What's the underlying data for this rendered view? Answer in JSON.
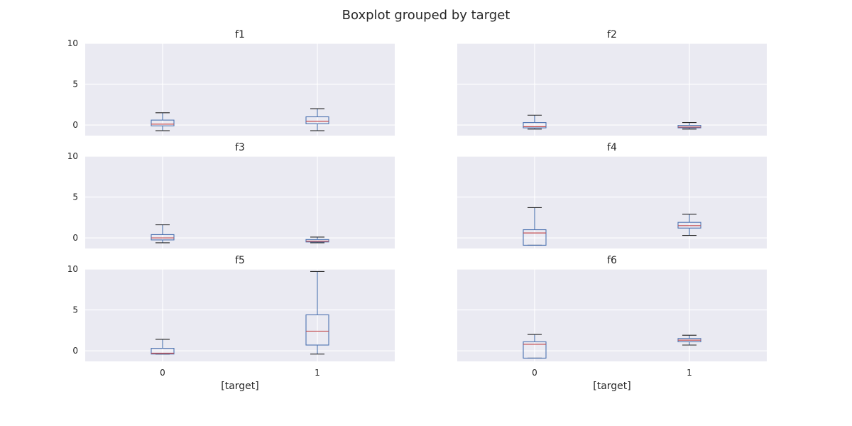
{
  "figure": {
    "suptitle": "Boxplot grouped by target",
    "xlabel": "[target]"
  },
  "colors": {
    "background": "#eaeaf2",
    "grid": "#ffffff",
    "box": "#4c72b0",
    "median": "#c44e52",
    "whisker_cap": "#262626"
  },
  "chart_data": [
    {
      "type": "box",
      "title": "f1",
      "categories": [
        "0",
        "1"
      ],
      "ylim": [
        -1.3,
        10
      ],
      "yticks": [
        0,
        5,
        10
      ],
      "grid": true,
      "boxes": [
        {
          "category": "0",
          "whislo": -0.7,
          "q1": -0.1,
          "med": 0.1,
          "q3": 0.6,
          "whishi": 1.5
        },
        {
          "category": "1",
          "whislo": -0.7,
          "q1": 0.15,
          "med": 0.45,
          "q3": 1.0,
          "whishi": 2.0
        }
      ]
    },
    {
      "type": "box",
      "title": "f2",
      "categories": [
        "0",
        "1"
      ],
      "ylim": [
        -1.3,
        10
      ],
      "yticks": [
        0,
        5,
        10
      ],
      "grid": true,
      "boxes": [
        {
          "category": "0",
          "whislo": -0.5,
          "q1": -0.35,
          "med": -0.2,
          "q3": 0.3,
          "whishi": 1.2
        },
        {
          "category": "1",
          "whislo": -0.5,
          "q1": -0.35,
          "med": -0.25,
          "q3": -0.05,
          "whishi": 0.3
        }
      ]
    },
    {
      "type": "box",
      "title": "f3",
      "categories": [
        "0",
        "1"
      ],
      "ylim": [
        -1.3,
        10
      ],
      "yticks": [
        0,
        5,
        10
      ],
      "grid": true,
      "boxes": [
        {
          "category": "0",
          "whislo": -0.6,
          "q1": -0.25,
          "med": 0.0,
          "q3": 0.4,
          "whishi": 1.6
        },
        {
          "category": "1",
          "whislo": -0.6,
          "q1": -0.5,
          "med": -0.4,
          "q3": -0.2,
          "whishi": 0.1
        }
      ]
    },
    {
      "type": "box",
      "title": "f4",
      "categories": [
        "0",
        "1"
      ],
      "ylim": [
        -1.3,
        10
      ],
      "yticks": [
        0,
        5,
        10
      ],
      "grid": true,
      "boxes": [
        {
          "category": "0",
          "whislo": -0.9,
          "q1": -0.9,
          "med": 0.6,
          "q3": 1.0,
          "whishi": 3.7
        },
        {
          "category": "1",
          "whislo": 0.3,
          "q1": 1.2,
          "med": 1.5,
          "q3": 1.9,
          "whishi": 2.9
        }
      ]
    },
    {
      "type": "box",
      "title": "f5",
      "categories": [
        "0",
        "1"
      ],
      "ylim": [
        -1.3,
        10
      ],
      "yticks": [
        0,
        5,
        10
      ],
      "grid": true,
      "boxes": [
        {
          "category": "0",
          "whislo": -0.4,
          "q1": -0.4,
          "med": -0.3,
          "q3": 0.3,
          "whishi": 1.4
        },
        {
          "category": "1",
          "whislo": -0.4,
          "q1": 0.7,
          "med": 2.4,
          "q3": 4.4,
          "whishi": 9.7
        }
      ]
    },
    {
      "type": "box",
      "title": "f6",
      "categories": [
        "0",
        "1"
      ],
      "ylim": [
        -1.3,
        10
      ],
      "yticks": [
        0,
        5,
        10
      ],
      "grid": true,
      "boxes": [
        {
          "category": "0",
          "whislo": -0.9,
          "q1": -0.9,
          "med": 0.8,
          "q3": 1.1,
          "whishi": 2.0
        },
        {
          "category": "1",
          "whislo": 0.7,
          "q1": 1.1,
          "med": 1.3,
          "q3": 1.5,
          "whishi": 1.9
        }
      ]
    }
  ]
}
